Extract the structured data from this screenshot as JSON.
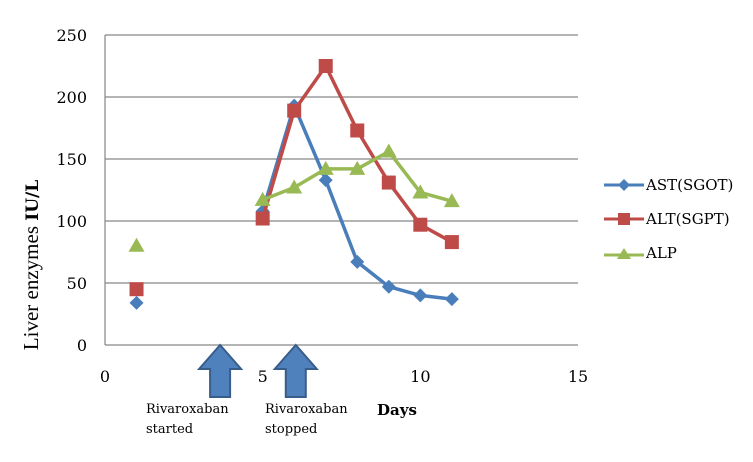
{
  "chart_data": {
    "type": "line",
    "title": "",
    "xlabel": "Days",
    "ylabel": "Liver enzymes",
    "ylabel_unit": "IU/L",
    "xlim": [
      0,
      15
    ],
    "ylim": [
      0,
      250
    ],
    "x_ticks": [
      0,
      5,
      10,
      15
    ],
    "y_ticks": [
      0,
      50,
      100,
      150,
      200,
      250
    ],
    "grid": "horizontal",
    "legend_position": "right",
    "series": [
      {
        "name": "AST(SGOT)",
        "color": "#4a7ebb",
        "marker": "diamond",
        "points": [
          [
            1,
            34
          ],
          [
            5,
            108
          ],
          [
            6,
            193
          ],
          [
            7,
            133
          ],
          [
            8,
            67
          ],
          [
            9,
            47
          ],
          [
            10,
            40
          ],
          [
            11,
            37
          ]
        ],
        "gap_after_index": 0
      },
      {
        "name": "ALT(SGPT)",
        "color": "#be4b48",
        "marker": "square",
        "points": [
          [
            1,
            45
          ],
          [
            5,
            102
          ],
          [
            6,
            189
          ],
          [
            7,
            225
          ],
          [
            8,
            173
          ],
          [
            9,
            131
          ],
          [
            10,
            97
          ],
          [
            11,
            83
          ]
        ],
        "gap_after_index": 0
      },
      {
        "name": "ALP",
        "color": "#98b954",
        "marker": "triangle",
        "points": [
          [
            1,
            80
          ],
          [
            5,
            117
          ],
          [
            6,
            127
          ],
          [
            7,
            142
          ],
          [
            8,
            142
          ],
          [
            9,
            156
          ],
          [
            10,
            123
          ],
          [
            11,
            116
          ]
        ],
        "gap_after_index": 0
      }
    ],
    "annotations": [
      {
        "text_line1": "Rivaroxaban",
        "text_line2": "started",
        "x": 3.65,
        "arrow": "up"
      },
      {
        "text_line1": "Rivaroxaban",
        "text_line2": "stopped",
        "x": 6.05,
        "arrow": "up"
      }
    ],
    "arrow_fill": "#4f81bd",
    "arrow_stroke": "#385d8a",
    "grid_color": "#868686"
  }
}
